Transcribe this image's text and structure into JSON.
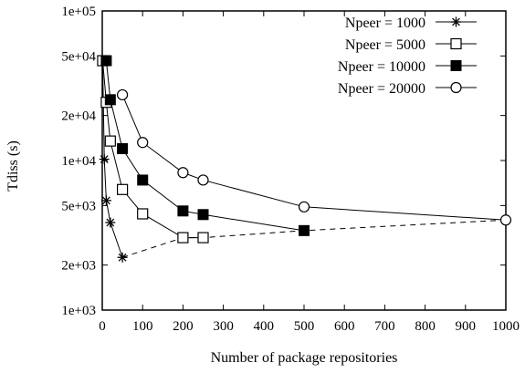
{
  "chart_data": {
    "type": "line",
    "xlabel": "Number of package repositories",
    "ylabel": "Tdiss (s)",
    "xlim": [
      0,
      1000
    ],
    "ylim": [
      1000,
      100000
    ],
    "yscale": "log",
    "grid": false,
    "legend_position": "top-right",
    "x_ticks": [
      0,
      100,
      200,
      300,
      400,
      500,
      600,
      700,
      800,
      900,
      1000
    ],
    "x_tick_labels": [
      "0",
      "100",
      "200",
      "300",
      "400",
      "500",
      "600",
      "700",
      "800",
      "900",
      "1000"
    ],
    "y_ticks": [
      1000,
      2000,
      5000,
      10000,
      20000,
      50000,
      100000
    ],
    "y_tick_labels": [
      "1e+03",
      "2e+03",
      "5e+03",
      "1e+04",
      "2e+04",
      "5e+04",
      "1e+05"
    ],
    "series": [
      {
        "name": "Npeer = 1000",
        "marker": "star",
        "x": [
          1,
          5,
          10,
          20,
          50
        ],
        "y": [
          46000,
          10200,
          5400,
          3850,
          2250
        ]
      },
      {
        "name": "Npeer = 5000",
        "marker": "square-open",
        "x": [
          1,
          10,
          20,
          50,
          100,
          200,
          250
        ],
        "y": [
          46500,
          24500,
          13500,
          6400,
          4400,
          3050,
          3050
        ]
      },
      {
        "name": "Npeer = 10000",
        "marker": "square-filled",
        "x": [
          10,
          20,
          50,
          100,
          200,
          250,
          500
        ],
        "y": [
          46500,
          25500,
          12000,
          7400,
          4600,
          4350,
          3400
        ]
      },
      {
        "name": "Npeer = 20000",
        "marker": "circle-open",
        "x": [
          50,
          100,
          200,
          250,
          500,
          1000
        ],
        "y": [
          27500,
          13200,
          8300,
          7400,
          4900,
          4000
        ]
      }
    ],
    "envelope": {
      "style": "dashed",
      "x": [
        50,
        200,
        250,
        500,
        1000
      ],
      "y": [
        2250,
        3050,
        3050,
        3400,
        4000
      ]
    }
  }
}
